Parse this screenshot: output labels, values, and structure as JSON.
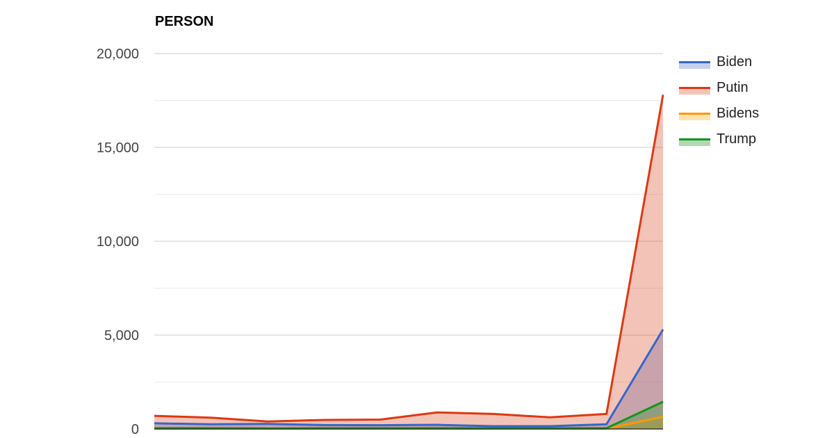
{
  "chart_data": {
    "type": "area",
    "title": "PERSON",
    "xlabel": "",
    "ylabel": "",
    "ylim": [
      0,
      20000
    ],
    "yticks": [
      {
        "value": 0,
        "label": "0"
      },
      {
        "value": 5000,
        "label": "5,000"
      },
      {
        "value": 10000,
        "label": "10,000"
      },
      {
        "value": 15000,
        "label": "15,000"
      },
      {
        "value": 20000,
        "label": "20,000"
      }
    ],
    "minor_gridlines": [
      2500,
      7500,
      12500,
      17500
    ],
    "grid": true,
    "legend_position": "right",
    "x": [
      1,
      2,
      3,
      4,
      5,
      6,
      7,
      8,
      9,
      10
    ],
    "series": [
      {
        "name": "Biden",
        "color": "#3366cc",
        "fill": "#c5d1ee",
        "values": [
          300,
          250,
          270,
          210,
          200,
          220,
          150,
          150,
          250,
          5300
        ]
      },
      {
        "name": "Putin",
        "color": "#dc3912",
        "fill": "#f5c4b8",
        "values": [
          700,
          600,
          400,
          480,
          500,
          880,
          800,
          620,
          800,
          17800
        ]
      },
      {
        "name": "Bidens",
        "color": "#ff9900",
        "fill": "#ffe0b2",
        "values": [
          20,
          20,
          20,
          20,
          20,
          20,
          20,
          20,
          20,
          650
        ]
      },
      {
        "name": "Trump",
        "color": "#109618",
        "fill": "#b0d9b3",
        "values": [
          40,
          40,
          30,
          40,
          40,
          40,
          40,
          40,
          40,
          1450
        ]
      }
    ]
  }
}
